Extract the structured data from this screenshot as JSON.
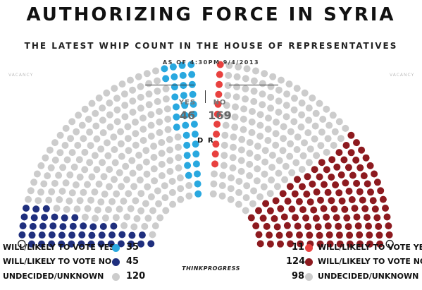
{
  "title": "AUTHORIZING FORCE IN SYRIA",
  "subtitle": "THE LATEST WHIP COUNT IN THE HOUSE OF REPRESENTATIVES",
  "as_of": "AS OF 4:30PM 9/4/2013",
  "vacancy_label": "VACANCY",
  "tally": {
    "yes_label": "YES",
    "yes_value": "46",
    "no_label": "NO",
    "no_value": "169"
  },
  "party_labels": {
    "dem": "D",
    "rep": "R"
  },
  "legend": {
    "dem": [
      {
        "label": "WILL/LIKELY TO VOTE YES",
        "value": "35",
        "color": "#29a8df"
      },
      {
        "label": "WILL/LIKELY TO VOTE NO",
        "value": "45",
        "color": "#1f2f7e"
      },
      {
        "label": "UNDECIDED/UNKNOWN",
        "value": "120",
        "color": "#cccccc"
      }
    ],
    "rep": [
      {
        "label": "WILL/LIKELY TO VOTE YES",
        "value": "11",
        "color": "#e8413f"
      },
      {
        "label": "WILL/LIKELY TO VOTE NO",
        "value": "124",
        "color": "#8d1a1f"
      },
      {
        "label": "UNDECIDED/UNKNOWN",
        "value": "98",
        "color": "#cccccc"
      }
    ]
  },
  "logo_text": "THINKPROGRESS",
  "chart_data": {
    "type": "seat-chart",
    "seats": {
      "dem_yes": 35,
      "dem_no": 45,
      "dem_undecided": 120,
      "dem_vacancy": 1,
      "rep_yes": 11,
      "rep_no": 124,
      "rep_undecided": 98,
      "rep_vacancy": 1
    },
    "colors": {
      "dem_yes": "#29a8df",
      "dem_no": "#1f2f7e",
      "rep_yes": "#e8413f",
      "rep_no": "#8d1a1f",
      "undecided": "#cccccc",
      "vacancy": "#222222"
    }
  }
}
